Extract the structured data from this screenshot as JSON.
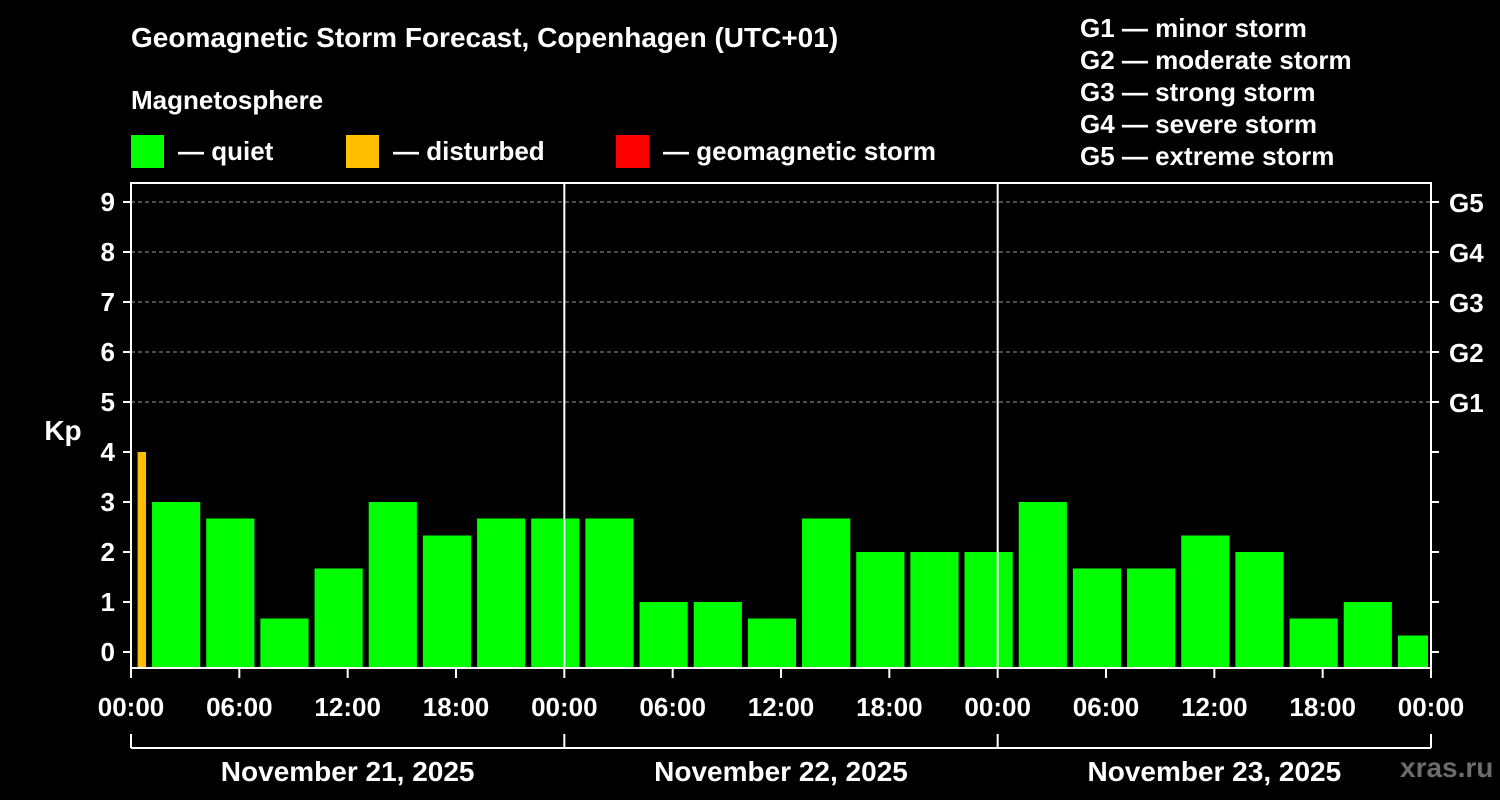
{
  "header": {
    "title": "Geomagnetic Storm Forecast, Copenhagen (UTC+01)",
    "section_title": "Magnetosphere"
  },
  "legend": [
    {
      "label": "— quiet",
      "color": "#00ff00"
    },
    {
      "label": "— disturbed",
      "color": "#ffbf00"
    },
    {
      "label": "— geomagnetic storm",
      "color": "#ff0000"
    }
  ],
  "storm_scale": [
    {
      "level": "G1",
      "desc": "minor storm",
      "text": "G1 — minor storm"
    },
    {
      "level": "G2",
      "desc": "moderate storm",
      "text": "G2 — moderate storm"
    },
    {
      "level": "G3",
      "desc": "strong storm",
      "text": "G3 — strong storm"
    },
    {
      "level": "G4",
      "desc": "severe storm",
      "text": "G4 — severe storm"
    },
    {
      "level": "G5",
      "desc": "extreme storm",
      "text": "G5 — extreme storm"
    }
  ],
  "watermark": "xras.ru",
  "chart_data": {
    "type": "bar",
    "ylabel": "Kp",
    "ylim": [
      0,
      9
    ],
    "y_ticks": [
      0,
      1,
      2,
      3,
      4,
      5,
      6,
      7,
      8,
      9
    ],
    "right_axis_labels": [
      {
        "kp": 5,
        "label": "G1"
      },
      {
        "kp": 6,
        "label": "G2"
      },
      {
        "kp": 7,
        "label": "G3"
      },
      {
        "kp": 8,
        "label": "G4"
      },
      {
        "kp": 9,
        "label": "G5"
      }
    ],
    "x_tick_labels": [
      "00:00",
      "06:00",
      "12:00",
      "18:00",
      "00:00",
      "06:00",
      "12:00",
      "18:00",
      "00:00",
      "06:00",
      "12:00",
      "18:00",
      "00:00"
    ],
    "dates": [
      "November 21, 2025",
      "November 22, 2025",
      "November 23, 2025"
    ],
    "grid": true,
    "categories": [
      "Nov 21 00-01",
      "Nov 21 01-04",
      "Nov 21 04-07",
      "Nov 21 07-10",
      "Nov 21 10-13",
      "Nov 21 13-16",
      "Nov 21 16-19",
      "Nov 21 19-22",
      "Nov 21 22-01",
      "Nov 22 01-04",
      "Nov 22 04-07",
      "Nov 22 07-10",
      "Nov 22 10-13",
      "Nov 22 13-16",
      "Nov 22 16-19",
      "Nov 22 19-22",
      "Nov 22 22-01",
      "Nov 23 01-04",
      "Nov 23 04-07",
      "Nov 23 07-10",
      "Nov 23 10-13",
      "Nov 23 13-16",
      "Nov 23 16-19",
      "Nov 23 19-22",
      "Nov 23 22-00"
    ],
    "bars": [
      {
        "start_hour": 0.2,
        "end_hour": 1,
        "kp": 4.0,
        "status": "disturbed"
      },
      {
        "start_hour": 1,
        "end_hour": 4,
        "kp": 3.0,
        "status": "quiet"
      },
      {
        "start_hour": 4,
        "end_hour": 7,
        "kp": 2.67,
        "status": "quiet"
      },
      {
        "start_hour": 7,
        "end_hour": 10,
        "kp": 0.67,
        "status": "quiet"
      },
      {
        "start_hour": 10,
        "end_hour": 13,
        "kp": 1.67,
        "status": "quiet"
      },
      {
        "start_hour": 13,
        "end_hour": 16,
        "kp": 3.0,
        "status": "quiet"
      },
      {
        "start_hour": 16,
        "end_hour": 19,
        "kp": 2.33,
        "status": "quiet"
      },
      {
        "start_hour": 19,
        "end_hour": 22,
        "kp": 2.67,
        "status": "quiet"
      },
      {
        "start_hour": 22,
        "end_hour": 25,
        "kp": 2.67,
        "status": "quiet"
      },
      {
        "start_hour": 25,
        "end_hour": 28,
        "kp": 2.67,
        "status": "quiet"
      },
      {
        "start_hour": 28,
        "end_hour": 31,
        "kp": 1.0,
        "status": "quiet"
      },
      {
        "start_hour": 31,
        "end_hour": 34,
        "kp": 1.0,
        "status": "quiet"
      },
      {
        "start_hour": 34,
        "end_hour": 37,
        "kp": 0.67,
        "status": "quiet"
      },
      {
        "start_hour": 37,
        "end_hour": 40,
        "kp": 2.67,
        "status": "quiet"
      },
      {
        "start_hour": 40,
        "end_hour": 43,
        "kp": 2.0,
        "status": "quiet"
      },
      {
        "start_hour": 43,
        "end_hour": 46,
        "kp": 2.0,
        "status": "quiet"
      },
      {
        "start_hour": 46,
        "end_hour": 49,
        "kp": 2.0,
        "status": "quiet"
      },
      {
        "start_hour": 49,
        "end_hour": 52,
        "kp": 3.0,
        "status": "quiet"
      },
      {
        "start_hour": 52,
        "end_hour": 55,
        "kp": 1.67,
        "status": "quiet"
      },
      {
        "start_hour": 55,
        "end_hour": 58,
        "kp": 1.67,
        "status": "quiet"
      },
      {
        "start_hour": 58,
        "end_hour": 61,
        "kp": 2.33,
        "status": "quiet"
      },
      {
        "start_hour": 61,
        "end_hour": 64,
        "kp": 2.0,
        "status": "quiet"
      },
      {
        "start_hour": 64,
        "end_hour": 67,
        "kp": 0.67,
        "status": "quiet"
      },
      {
        "start_hour": 67,
        "end_hour": 70,
        "kp": 1.0,
        "status": "quiet"
      },
      {
        "start_hour": 70,
        "end_hour": 72,
        "kp": 0.33,
        "status": "quiet"
      }
    ],
    "colors": {
      "quiet": "#00ff00",
      "disturbed": "#ffbf00",
      "storm": "#ff0000"
    }
  }
}
